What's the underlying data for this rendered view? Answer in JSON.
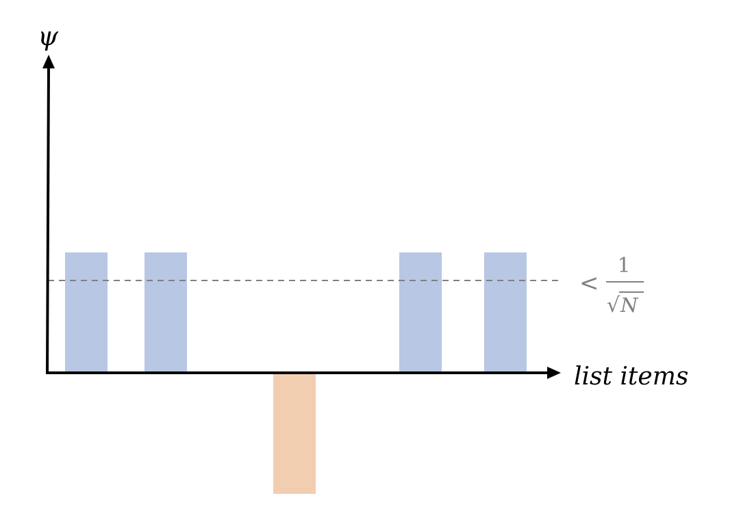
{
  "diagram": {
    "y_axis_label": "ψ",
    "x_axis_label": "list items",
    "threshold": {
      "relation": "<",
      "numerator": "1",
      "radical": "√",
      "radicand": "N"
    }
  },
  "colors": {
    "axis": "#000000",
    "positive_bar": "#b7c7e4",
    "negative_bar": "#f2ceb0",
    "threshold_line": "#7f7f7f",
    "threshold_text": "#808080"
  }
}
